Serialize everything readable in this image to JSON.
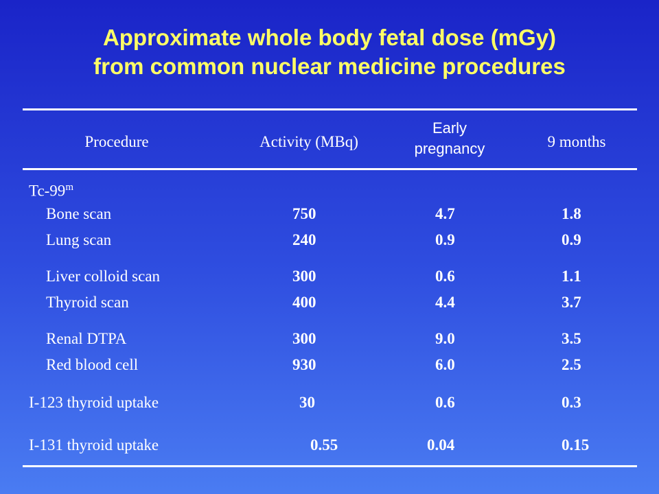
{
  "title": {
    "line1": "Approximate whole body fetal dose (mGy)",
    "line2": "from common nuclear medicine procedures"
  },
  "headers": {
    "procedure": "Procedure",
    "activity": "Activity (MBq)",
    "early_line1": "Early",
    "early_line2": "pregnancy",
    "nine_months": "9 months"
  },
  "group": {
    "name": "Tc-99",
    "superscript": "m"
  },
  "rows": [
    {
      "procedure": "Bone scan",
      "activity": "750",
      "early": "4.7",
      "nine": "1.8"
    },
    {
      "procedure": "Lung scan",
      "activity": "240",
      "early": "0.9",
      "nine": "0.9"
    },
    {
      "procedure": "Liver colloid scan",
      "activity": "300",
      "early": "0.6",
      "nine": "1.1"
    },
    {
      "procedure": "Thyroid scan",
      "activity": "400",
      "early": "4.4",
      "nine": "3.7"
    },
    {
      "procedure": "Renal DTPA",
      "activity": "300",
      "early": "9.0",
      "nine": "3.5"
    },
    {
      "procedure": "Red blood cell",
      "activity": "930",
      "early": "6.0",
      "nine": "2.5"
    },
    {
      "procedure": "I-123 thyroid uptake",
      "activity": "30",
      "early": "0.6",
      "nine": "0.3"
    },
    {
      "procedure": "I-131 thyroid uptake",
      "activity": "0.55",
      "early": "0.04",
      "nine": "0.15"
    }
  ]
}
